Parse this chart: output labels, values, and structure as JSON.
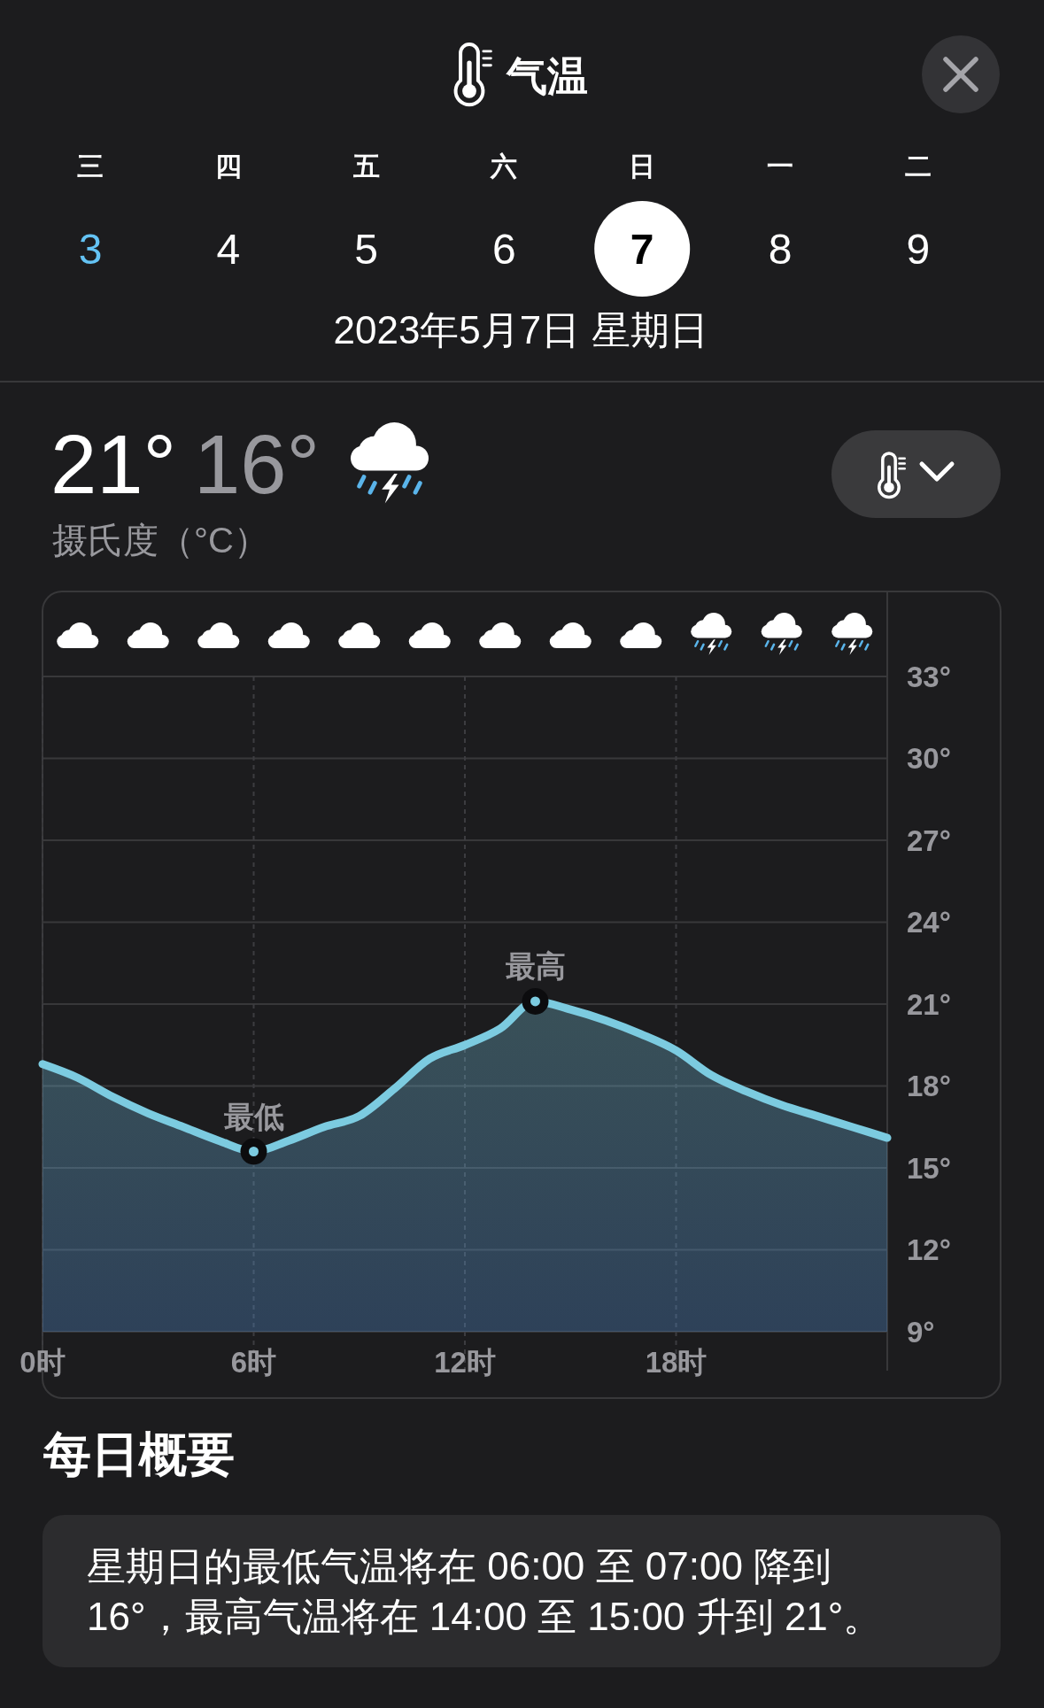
{
  "chart_data": {
    "type": "area",
    "title": "气温",
    "subtitle": "2023年5月7日 星期日",
    "x": [
      0,
      1,
      2,
      3,
      4,
      5,
      6,
      7,
      8,
      9,
      10,
      11,
      12,
      13,
      14,
      15,
      16,
      17,
      18,
      19,
      20,
      21,
      22,
      23,
      24
    ],
    "values": [
      18.8,
      18.3,
      17.6,
      17.0,
      16.5,
      16.0,
      15.6,
      16.0,
      16.5,
      16.9,
      17.9,
      19.0,
      19.5,
      20.1,
      21.1,
      20.8,
      20.4,
      19.9,
      19.3,
      18.4,
      17.8,
      17.3,
      16.9,
      16.5,
      16.1
    ],
    "color": "#7ccbe0",
    "xlim": [
      0,
      24
    ],
    "xticks": [
      {
        "value": 0,
        "label": "0时"
      },
      {
        "value": 6,
        "label": "6时"
      },
      {
        "value": 12,
        "label": "12时"
      },
      {
        "value": 18,
        "label": "18时"
      }
    ],
    "ylim": [
      9,
      33
    ],
    "yticks": [
      {
        "value": 9,
        "label": "9°"
      },
      {
        "value": 12,
        "label": "12°"
      },
      {
        "value": 15,
        "label": "15°"
      },
      {
        "value": 18,
        "label": "18°"
      },
      {
        "value": 21,
        "label": "21°"
      },
      {
        "value": 24,
        "label": "24°"
      },
      {
        "value": 27,
        "label": "27°"
      },
      {
        "value": 30,
        "label": "30°"
      },
      {
        "value": 33,
        "label": "33°"
      }
    ],
    "grid": true,
    "annotations": [
      "三",
      "四",
      "五",
      "六",
      "日",
      "一",
      "二",
      "3",
      "4",
      "5",
      "6",
      "7",
      "8",
      "9",
      "21°",
      "16°",
      "摄氏度（°C）",
      {
        "text": "最低",
        "x": 6,
        "y": 15.6
      },
      {
        "text": "最高",
        "x": 14,
        "y": 21.1
      },
      "每日概要",
      "星期日的最低气温将在 06:00 至 07:00 降到 16°，最高气温将在 14:00 至 15:00 升到 21°。"
    ]
  }
}
